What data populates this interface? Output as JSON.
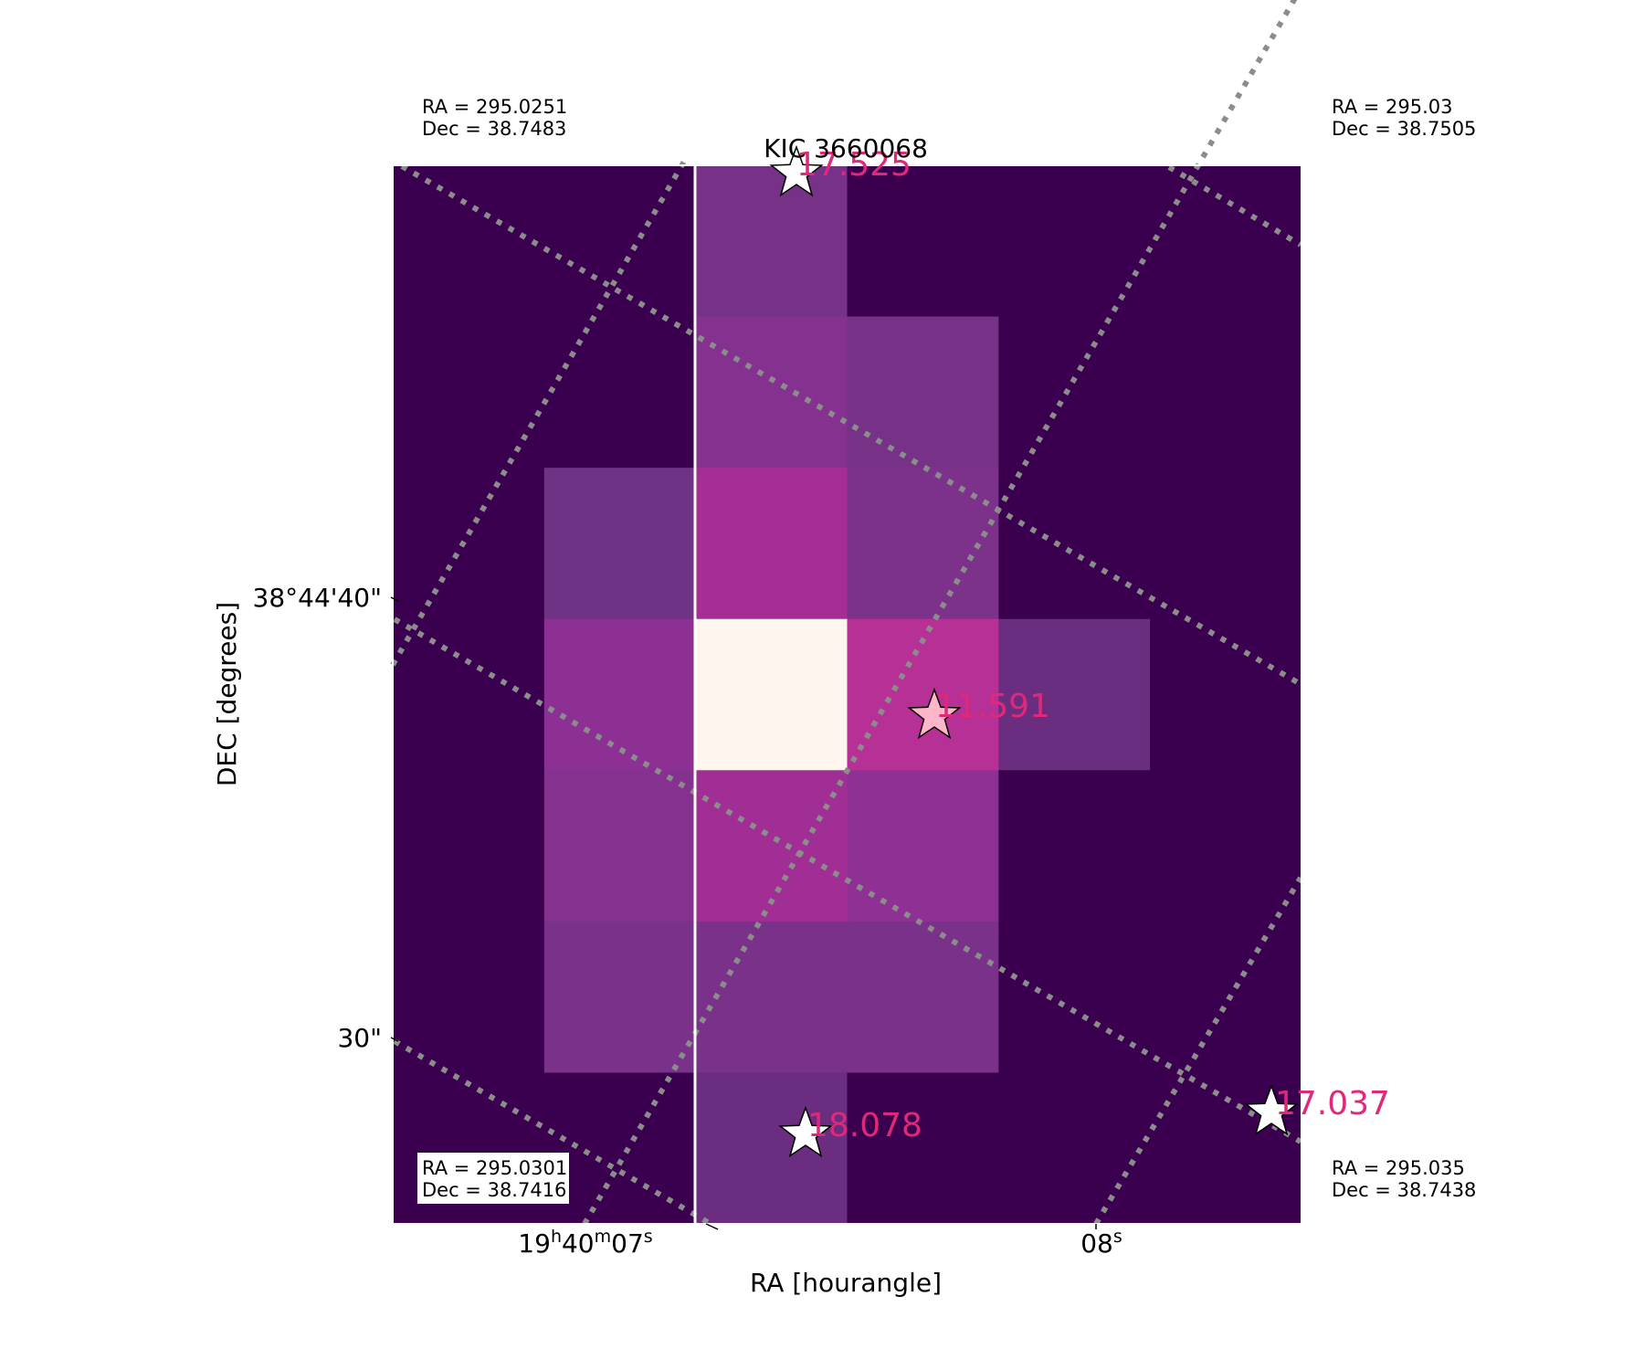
{
  "chart_data": {
    "type": "heatmap",
    "title": "KIC 3660068",
    "xlabel": "RA [hourangle]",
    "ylabel": "DEC [degrees]",
    "x_ticks": [
      {
        "label": "19h40m07s",
        "base": "19",
        "parts": [
          [
            "h",
            "40"
          ],
          [
            "m",
            "07"
          ],
          [
            "s",
            ""
          ]
        ]
      },
      {
        "label": "08s",
        "base": "08",
        "parts": [
          [
            "s",
            ""
          ]
        ]
      }
    ],
    "y_ticks": [
      "38°44'40\"",
      "30\""
    ],
    "pixel_grid": {
      "cols": 6,
      "rows": 7,
      "levels": [
        [
          0,
          0,
          0.25,
          0,
          0,
          0
        ],
        [
          0,
          0,
          0.35,
          0.25,
          0,
          0
        ],
        [
          0,
          0.22,
          0.55,
          0.3,
          0,
          0
        ],
        [
          0,
          0.4,
          1.0,
          0.65,
          0.2,
          0
        ],
        [
          0,
          0.35,
          0.52,
          0.42,
          0,
          0
        ],
        [
          0,
          0.28,
          0.28,
          0.28,
          0,
          0
        ],
        [
          0,
          0,
          0.2,
          0,
          0,
          0
        ]
      ],
      "mask_col_start": 1
    },
    "corner_labels": [
      {
        "corner": "top-left",
        "ra": "RA = 295.0251",
        "dec": "Dec = 38.7483"
      },
      {
        "corner": "top-right",
        "ra": "RA = 295.03",
        "dec": "Dec = 38.7505"
      },
      {
        "corner": "bottom-left",
        "ra": "RA = 295.0301",
        "dec": "Dec = 38.7416"
      },
      {
        "corner": "bottom-right",
        "ra": "RA = 295.035",
        "dec": "Dec = 38.7438"
      }
    ],
    "stars": [
      {
        "magnitude": "11.591",
        "target": true
      },
      {
        "magnitude": "17.525",
        "target": false
      },
      {
        "magnitude": "18.078",
        "target": false
      },
      {
        "magnitude": "17.037",
        "target": false
      }
    ],
    "grid": "dotted-gray"
  },
  "colors": {
    "background_pixel": "#3a004f",
    "colormap": "RdPu",
    "magnitude_label": "#e0287a",
    "target_star_fill": "#ffb6c8",
    "field_star_fill": "#ffffff",
    "gridline": "#8c8c8c"
  }
}
